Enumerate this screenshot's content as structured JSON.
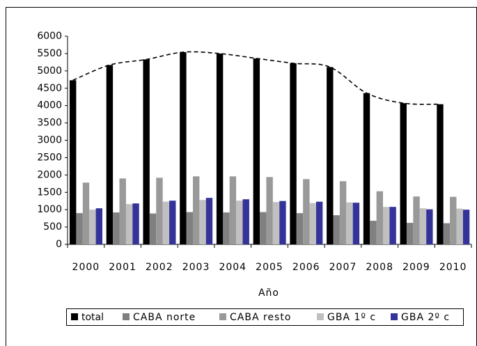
{
  "chart_data": {
    "type": "bar",
    "x_label": "Año",
    "categories": [
      "2000",
      "2001",
      "2002",
      "2003",
      "2004",
      "2005",
      "2006",
      "2007",
      "2008",
      "2009",
      "2010"
    ],
    "series": [
      {
        "name": "total",
        "color": "#000000",
        "values": [
          4730,
          5170,
          5330,
          5540,
          5500,
          5360,
          5220,
          5110,
          4360,
          4070,
          4040
        ]
      },
      {
        "name": "CABA norte",
        "color": "#808080",
        "values": [
          900,
          920,
          890,
          930,
          920,
          930,
          900,
          840,
          680,
          620,
          610
        ]
      },
      {
        "name": "CABA resto",
        "color": "#999999",
        "values": [
          1780,
          1900,
          1920,
          1960,
          1960,
          1940,
          1880,
          1820,
          1530,
          1380,
          1370
        ]
      },
      {
        "name": "GBA 1º c",
        "color": "#c0c0c0",
        "values": [
          1000,
          1160,
          1230,
          1280,
          1260,
          1220,
          1190,
          1210,
          1080,
          1040,
          1030
        ]
      },
      {
        "name": "GBA 2º c",
        "color": "#333399",
        "values": [
          1040,
          1180,
          1260,
          1340,
          1300,
          1250,
          1230,
          1200,
          1080,
          1010,
          1000
        ]
      }
    ],
    "trend_line": {
      "series": 0,
      "style": "dashed",
      "color": "#000000"
    },
    "ylim": [
      0,
      6000
    ],
    "yticks": [
      0,
      500,
      1000,
      1500,
      2000,
      2500,
      3000,
      3500,
      4000,
      4500,
      5000,
      5500,
      6000
    ],
    "grid": false,
    "legend": "bottom"
  }
}
